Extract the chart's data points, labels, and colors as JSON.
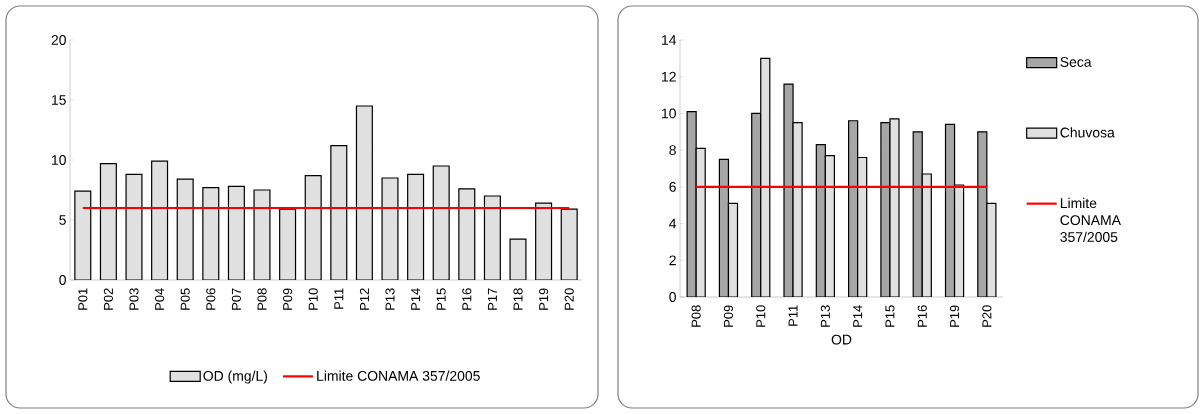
{
  "chart_data": [
    {
      "type": "bar",
      "categories": [
        "P01",
        "P02",
        "P03",
        "P04",
        "P05",
        "P06",
        "P07",
        "P08",
        "P09",
        "P10",
        "P11",
        "P12",
        "P13",
        "P14",
        "P15",
        "P16",
        "P17",
        "P18",
        "P19",
        "P20"
      ],
      "series": [
        {
          "name": "OD (mg/L)",
          "color": "#e0e0e0",
          "values": [
            7.4,
            9.7,
            8.8,
            9.9,
            8.4,
            7.7,
            7.8,
            7.5,
            5.9,
            8.7,
            11.2,
            14.5,
            8.5,
            8.8,
            9.5,
            7.6,
            7.0,
            3.4,
            6.4,
            5.9
          ]
        }
      ],
      "ylim": [
        0,
        20
      ],
      "yticks": [
        0,
        5,
        10,
        15,
        20
      ],
      "ref_lines": [
        {
          "axis": "y",
          "value": 6,
          "label": "Limite CONAMA 357/2005",
          "color": "#ff0000"
        }
      ],
      "legend": "bottom"
    },
    {
      "type": "bar",
      "categories": [
        "P08",
        "P09",
        "P10",
        "P11",
        "P13",
        "P14",
        "P15",
        "P16",
        "P19",
        "P20"
      ],
      "xlabel": "OD",
      "series": [
        {
          "name": "Seca",
          "color": "#a6a6a6",
          "values": [
            10.1,
            7.5,
            10.0,
            11.6,
            8.3,
            9.6,
            9.5,
            9.0,
            9.4,
            9.0
          ]
        },
        {
          "name": "Chuvosa",
          "color": "#e0e0e0",
          "values": [
            8.1,
            5.1,
            13.0,
            9.5,
            7.7,
            7.6,
            9.7,
            6.7,
            6.1,
            5.1
          ]
        }
      ],
      "ylim": [
        0,
        14
      ],
      "yticks": [
        0,
        2,
        4,
        6,
        8,
        10,
        12,
        14
      ],
      "ref_lines": [
        {
          "axis": "y",
          "value": 6,
          "label": "Limite CONAMA 357/2005",
          "color": "#ff0000"
        }
      ],
      "legend": "right"
    }
  ]
}
